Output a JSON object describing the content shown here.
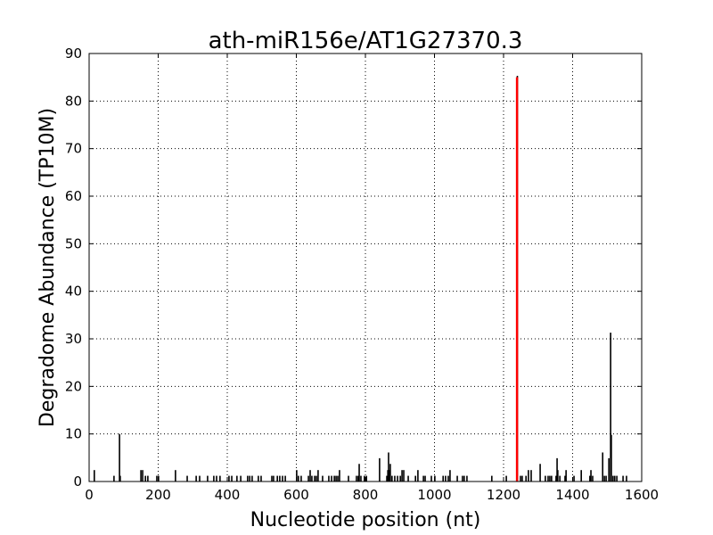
{
  "chart_data": {
    "type": "bar",
    "title": "ath-miR156e/AT1G27370.3",
    "xlabel": "Nucleotide position (nt)",
    "ylabel": "Degradome Abundance (TP10M)",
    "xlim": [
      0,
      1600
    ],
    "ylim": [
      0,
      90
    ],
    "xticks": [
      0,
      200,
      400,
      600,
      800,
      1000,
      1200,
      1400,
      1600
    ],
    "yticks": [
      0,
      10,
      20,
      30,
      40,
      50,
      60,
      70,
      80,
      90
    ],
    "grid": true,
    "colors": {
      "bars": "#000000",
      "target_site": "#ff0000"
    },
    "target_site": {
      "x": 1239,
      "y": 85
    },
    "bars": {
      "x": [
        15,
        72,
        88,
        90,
        150,
        155,
        163,
        170,
        196,
        201,
        250,
        284,
        310,
        320,
        343,
        361,
        369,
        379,
        405,
        413,
        428,
        439,
        459,
        465,
        472,
        490,
        498,
        529,
        534,
        545,
        552,
        560,
        568,
        601,
        606,
        614,
        635,
        640,
        645,
        653,
        658,
        663,
        676,
        694,
        702,
        710,
        715,
        720,
        725,
        751,
        774,
        779,
        782,
        787,
        797,
        803,
        841,
        862,
        865,
        867,
        870,
        872,
        877,
        885,
        893,
        901,
        906,
        911,
        924,
        945,
        952,
        968,
        973,
        991,
        1001,
        1025,
        1032,
        1040,
        1045,
        1066,
        1081,
        1086,
        1094,
        1166,
        1208,
        1240,
        1249,
        1254,
        1265,
        1272,
        1280,
        1306,
        1321,
        1329,
        1334,
        1339,
        1352,
        1355,
        1357,
        1363,
        1378,
        1381,
        1404,
        1425,
        1450,
        1453,
        1458,
        1487,
        1492,
        1497,
        1505,
        1510,
        1512,
        1517,
        1522,
        1528,
        1546,
        1556
      ],
      "y": [
        2.4,
        1.2,
        10,
        1.2,
        2.4,
        2.4,
        1.2,
        1.2,
        1.2,
        1.2,
        2.4,
        1.2,
        1.2,
        1.2,
        1.2,
        1.2,
        1.2,
        1.2,
        1.2,
        1.2,
        1.2,
        1.2,
        1.2,
        1.2,
        1.2,
        1.2,
        1.2,
        1.2,
        1.2,
        1.2,
        1.2,
        1.2,
        1.2,
        2.4,
        1.2,
        1.2,
        1.2,
        2.4,
        1.2,
        1.2,
        1.2,
        2.4,
        1.2,
        1.2,
        1.2,
        1.2,
        1.2,
        1.2,
        2.4,
        1.2,
        1.2,
        1.2,
        3.7,
        1.2,
        1.2,
        1.2,
        4.9,
        1.2,
        2.4,
        6.1,
        2.4,
        3.7,
        1.2,
        1.2,
        1.2,
        1.2,
        2.4,
        2.4,
        1.2,
        1.2,
        2.4,
        1.2,
        1.2,
        1.2,
        1.2,
        1.2,
        1.2,
        1.2,
        2.4,
        1.2,
        1.2,
        1.2,
        1.2,
        1.2,
        1.2,
        85.3,
        1.2,
        1.2,
        1.2,
        2.4,
        2.4,
        3.7,
        1.2,
        1.2,
        1.2,
        1.2,
        1.2,
        4.9,
        2.4,
        1.2,
        1.2,
        2.4,
        1.2,
        2.4,
        1.2,
        2.4,
        1.2,
        6.1,
        1.2,
        1.2,
        4.9,
        31.3,
        9.8,
        1.2,
        1.2,
        1.2,
        1.2,
        1.2
      ]
    }
  }
}
